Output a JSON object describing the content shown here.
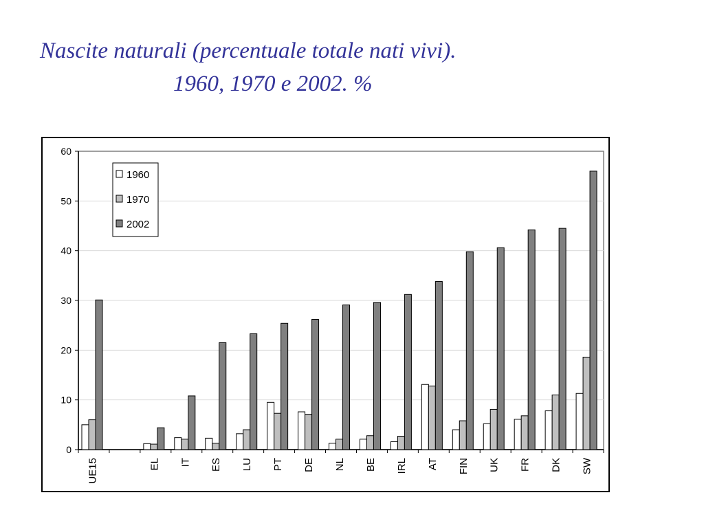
{
  "title": {
    "line1": "Nascite naturali (percentuale totale nati vivi).",
    "line2": "1960, 1970 e 2002. %"
  },
  "colors": {
    "title": "#333399",
    "series_1960": "#ffffff",
    "series_1970": "#bfbfbf",
    "series_2002": "#808080"
  },
  "chart_data": {
    "type": "bar",
    "title": "Nascite naturali (percentuale totale nati vivi). 1960, 1970 e 2002. %",
    "xlabel": "",
    "ylabel": "",
    "ylim": [
      0,
      60
    ],
    "yticks": [
      0,
      10,
      20,
      30,
      40,
      50,
      60
    ],
    "grid": true,
    "legend_position": "top-left",
    "categories": [
      "UE15",
      "",
      "EL",
      "IT",
      "ES",
      "LU",
      "PT",
      "DE",
      "NL",
      "BE",
      "IRL",
      "AT",
      "FIN",
      "UK",
      "FR",
      "DK",
      "SW"
    ],
    "series": [
      {
        "name": "1960",
        "values": [
          5.0,
          null,
          1.2,
          2.4,
          2.3,
          3.2,
          9.5,
          7.6,
          1.3,
          2.1,
          1.6,
          13.1,
          4.0,
          5.2,
          6.1,
          7.8,
          11.3
        ]
      },
      {
        "name": "1970",
        "values": [
          6.0,
          null,
          1.1,
          2.1,
          1.3,
          4.0,
          7.3,
          7.1,
          2.1,
          2.8,
          2.7,
          12.8,
          5.8,
          8.1,
          6.8,
          11.0,
          18.6
        ]
      },
      {
        "name": "2002",
        "values": [
          30.1,
          null,
          4.4,
          10.8,
          21.5,
          23.3,
          25.4,
          26.2,
          29.1,
          29.6,
          31.2,
          33.8,
          39.8,
          40.6,
          44.2,
          44.5,
          56.0
        ]
      }
    ]
  }
}
